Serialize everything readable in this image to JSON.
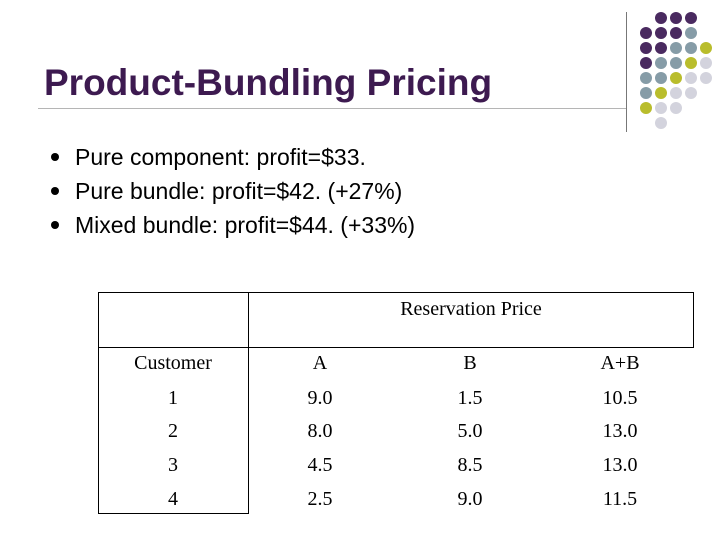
{
  "slide": {
    "title": "Product-Bundling Pricing",
    "bullets": [
      "Pure component: profit=$33.",
      "Pure bundle: profit=$42. (+27%)",
      "Mixed bundle: profit=$44. (+33%)"
    ]
  },
  "decor": {
    "colors": {
      "purple": "#4a2a60",
      "gray": "#869ca7",
      "olive": "#b9bd2c",
      "light": "#d3d3dd"
    }
  },
  "table": {
    "group_header": "Reservation Price",
    "columns": [
      "Customer",
      "A",
      "B",
      "A+B"
    ],
    "rows": [
      [
        "1",
        "9.0",
        "1.5",
        "10.5"
      ],
      [
        "2",
        "8.0",
        "5.0",
        "13.0"
      ],
      [
        "3",
        "4.5",
        "8.5",
        "13.0"
      ],
      [
        "4",
        "2.5",
        "9.0",
        "11.5"
      ]
    ]
  }
}
